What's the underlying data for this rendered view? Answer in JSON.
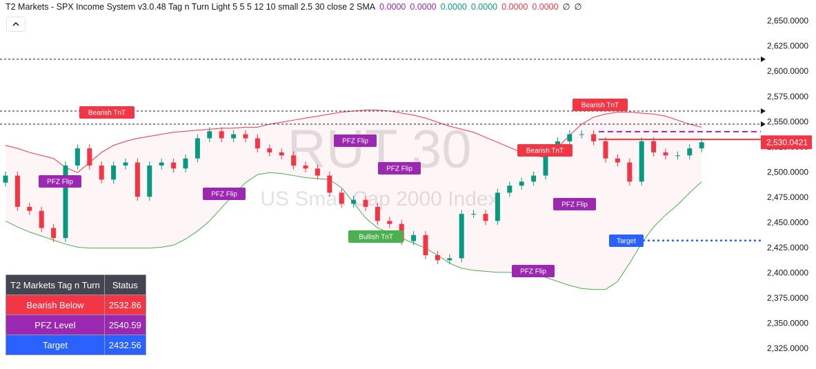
{
  "chart_data": {
    "type": "candlestick",
    "header": "T2 Markets - SPX Income System v3.0.48 Tag n Turn Light 5 5 5 12 10 small 2.5 30 close 2 SMA",
    "indicator_values": [
      {
        "label": "0.0000",
        "color": "#9c27b0"
      },
      {
        "label": "0.0000",
        "color": "#9c27b0"
      },
      {
        "label": "0.0000",
        "color": "#089981"
      },
      {
        "label": "0.0000",
        "color": "#089981"
      },
      {
        "label": "0.0000",
        "color": "#f23645"
      },
      {
        "label": "0.0000",
        "color": "#f23645"
      },
      {
        "label": "∅",
        "color": "#131722"
      },
      {
        "label": "∅",
        "color": "#131722"
      }
    ],
    "watermark": "RUT 30",
    "watermark_subtitle": "US Small Cap 2000 Index",
    "up_color": "#089981",
    "down_color": "#f23645",
    "open": [
      2490,
      2497,
      2466,
      2462,
      2445,
      2435,
      2507,
      2524,
      2507,
      2493,
      2507,
      2510,
      2476,
      2507,
      2510,
      2504,
      2514,
      2534,
      2541,
      2534,
      2538,
      2534,
      2524,
      2520,
      2517,
      2507,
      2504,
      2497,
      2480,
      2469,
      2473,
      2466,
      2452,
      2449,
      2432,
      2438,
      2418,
      2413,
      2415,
      2459,
      2459,
      2452,
      2480,
      2487,
      2491,
      2497,
      2524,
      2531,
      2538,
      2538,
      2531,
      2514,
      2510,
      2491,
      2531,
      2520,
      2517,
      2517,
      2524
    ],
    "high": [
      2501,
      2501,
      2470,
      2466,
      2449,
      2511,
      2528,
      2528,
      2511,
      2511,
      2514,
      2514,
      2511,
      2514,
      2514,
      2518,
      2538,
      2545,
      2545,
      2542,
      2542,
      2538,
      2528,
      2524,
      2521,
      2511,
      2508,
      2501,
      2484,
      2477,
      2477,
      2470,
      2456,
      2453,
      2442,
      2442,
      2422,
      2419,
      2463,
      2463,
      2463,
      2484,
      2491,
      2495,
      2501,
      2528,
      2535,
      2542,
      2542,
      2542,
      2535,
      2518,
      2514,
      2535,
      2535,
      2524,
      2521,
      2528,
      2534
    ],
    "low": [
      2486,
      2462,
      2458,
      2441,
      2431,
      2431,
      2503,
      2503,
      2489,
      2489,
      2503,
      2472,
      2472,
      2503,
      2500,
      2500,
      2510,
      2530,
      2530,
      2530,
      2530,
      2520,
      2516,
      2513,
      2503,
      2500,
      2493,
      2476,
      2465,
      2465,
      2462,
      2448,
      2445,
      2428,
      2428,
      2414,
      2409,
      2409,
      2411,
      2455,
      2448,
      2448,
      2476,
      2483,
      2487,
      2493,
      2520,
      2527,
      2534,
      2527,
      2510,
      2506,
      2487,
      2487,
      2516,
      2513,
      2513,
      2513,
      2520
    ],
    "close": [
      2497,
      2466,
      2462,
      2445,
      2435,
      2507,
      2524,
      2507,
      2493,
      2507,
      2510,
      2476,
      2507,
      2510,
      2504,
      2514,
      2534,
      2541,
      2534,
      2538,
      2534,
      2524,
      2520,
      2517,
      2507,
      2504,
      2497,
      2480,
      2469,
      2473,
      2466,
      2452,
      2449,
      2432,
      2438,
      2418,
      2413,
      2415,
      2459,
      2459,
      2452,
      2480,
      2487,
      2491,
      2497,
      2524,
      2531,
      2538,
      2538,
      2531,
      2514,
      2510,
      2491,
      2531,
      2520,
      2517,
      2517,
      2524,
      2530.0421
    ],
    "upper_band": {
      "color": "#f23645",
      "values": [
        2527,
        2524,
        2520,
        2517,
        2514,
        2505,
        2500,
        2510,
        2520,
        2527,
        2531,
        2534,
        2536,
        2538,
        2540,
        2541,
        2542,
        2543,
        2544,
        2544,
        2545,
        2545,
        2548,
        2550,
        2552,
        2554,
        2556,
        2558,
        2560,
        2561,
        2562,
        2562,
        2561,
        2559,
        2557,
        2554,
        2550,
        2546,
        2543,
        2540,
        2535,
        2530,
        2525,
        2520,
        2517,
        2515,
        2525,
        2537,
        2548,
        2555,
        2558,
        2560,
        2560,
        2559,
        2558,
        2556,
        2552,
        2548,
        2545
      ]
    },
    "lower_band": {
      "color": "#4caf50",
      "values": [
        2452,
        2446,
        2441,
        2437,
        2433,
        2429,
        2426,
        2425,
        2425,
        2425,
        2425,
        2425,
        2425,
        2426,
        2428,
        2434,
        2442,
        2452,
        2465,
        2478,
        2490,
        2498,
        2500,
        2499,
        2497,
        2495,
        2494,
        2493,
        2485,
        2470,
        2455,
        2445,
        2440,
        2435,
        2430,
        2425,
        2418,
        2410,
        2405,
        2403,
        2402,
        2401,
        2401,
        2400,
        2399,
        2396,
        2392,
        2388,
        2385,
        2384,
        2384,
        2392,
        2410,
        2430,
        2446,
        2458,
        2468,
        2480,
        2491
      ]
    },
    "levels": [
      2612.4,
      2561,
      2548
    ],
    "last_price": {
      "value": 2530.0421,
      "label": "2,530.0421"
    },
    "annotations": [
      "Bearish TnT",
      "Bearish TnT",
      "Bearish TnT",
      "PFZ Flip",
      "PFZ Flip",
      "PFZ Flip",
      "PFZ Flip",
      "PFZ Flip",
      "PFZ Flip",
      "Bullish TnT",
      "Target"
    ],
    "table": {
      "header": [
        "T2 Markets Tag n Turn",
        "Status"
      ],
      "rows": [
        {
          "name": "Bearish Below",
          "value": 2532.86,
          "color": "#f23645"
        },
        {
          "name": "PFZ Level",
          "value": 2540.59,
          "color": "#9c27b0"
        },
        {
          "name": "Target",
          "value": 2432.56,
          "color": "#2962ff"
        }
      ]
    },
    "ylim": [
      2305.1,
      2671.2
    ],
    "yticks": [
      {
        "value": 2325,
        "label": "2,325.0000"
      },
      {
        "value": 2350,
        "label": "2,350.0000"
      },
      {
        "value": 2375,
        "label": "2,375.0000"
      },
      {
        "value": 2400,
        "label": "2,400.0000"
      },
      {
        "value": 2425,
        "label": "2,425.0000"
      },
      {
        "value": 2450,
        "label": "2,450.0000"
      },
      {
        "value": 2475,
        "label": "2,475.0000"
      },
      {
        "value": 2500,
        "label": "2,500.0000"
      },
      {
        "value": 2525,
        "label": "2,525.0000"
      },
      {
        "value": 2550,
        "label": "2,550.0000"
      },
      {
        "value": 2575,
        "label": "2,575.0000"
      },
      {
        "value": 2600,
        "label": "2,600.0000"
      },
      {
        "value": 2625,
        "label": "2,625.0000"
      },
      {
        "value": 2650,
        "label": "2,650.0000"
      }
    ]
  }
}
